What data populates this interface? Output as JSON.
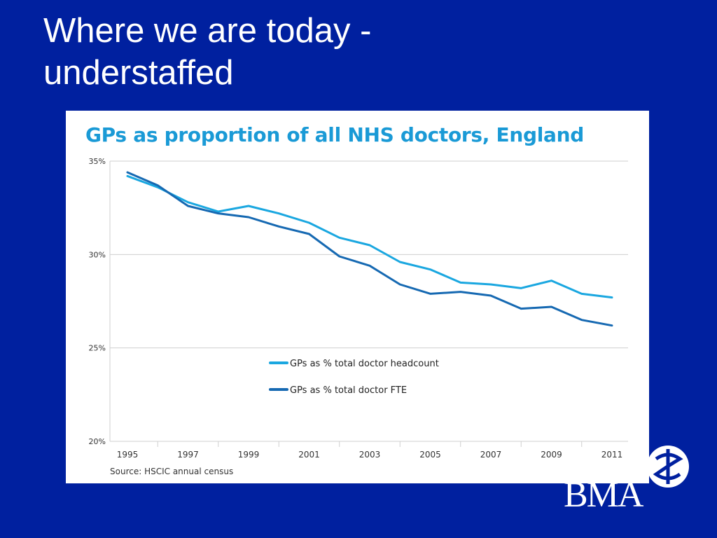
{
  "slide": {
    "title_line1": "Where we are today -",
    "title_line2": "understaffed"
  },
  "logo": {
    "text": "BMA"
  },
  "chart_data": {
    "type": "line",
    "title": "GPs as proportion of all NHS doctors, England",
    "source": "Source: HSCIC annual census",
    "x": [
      1995,
      1996,
      1997,
      1998,
      1999,
      2000,
      2001,
      2002,
      2003,
      2004,
      2005,
      2006,
      2007,
      2008,
      2009,
      2010,
      2011
    ],
    "xtick_labels": [
      "1995",
      "1997",
      "1999",
      "2001",
      "2003",
      "2005",
      "2007",
      "2009",
      "2011"
    ],
    "ytick_labels": [
      "20%",
      "25%",
      "30%",
      "35%"
    ],
    "ylim": [
      20,
      35
    ],
    "grid": true,
    "legend_position": "center",
    "series": [
      {
        "name": "GPs as % total doctor headcount",
        "color": "#1aa7e0",
        "values": [
          34.2,
          33.6,
          32.8,
          32.3,
          32.6,
          32.2,
          31.7,
          30.9,
          30.5,
          29.6,
          29.2,
          28.5,
          28.4,
          28.2,
          28.6,
          27.9,
          27.7
        ]
      },
      {
        "name": "GPs as % total doctor FTE",
        "color": "#1669b2",
        "values": [
          34.4,
          33.7,
          32.6,
          32.2,
          32.0,
          31.5,
          31.1,
          29.9,
          29.4,
          28.4,
          27.9,
          28.0,
          27.8,
          27.1,
          27.2,
          26.5,
          26.2
        ]
      }
    ]
  }
}
